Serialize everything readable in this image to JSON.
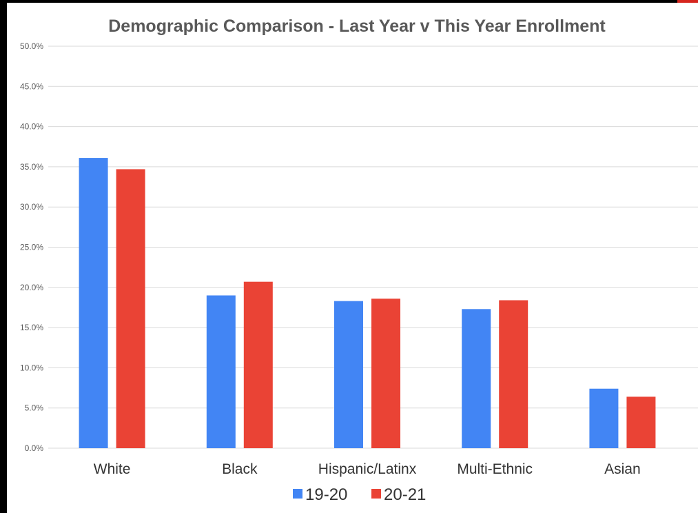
{
  "chart_data": {
    "type": "bar",
    "title": "Demographic Comparison - Last Year v This Year Enrollment",
    "categories": [
      "White",
      "Black",
      "Hispanic/Latinx",
      "Multi-Ethnic",
      "Asian"
    ],
    "series": [
      {
        "name": "19-20",
        "color": "#4285f4",
        "values": [
          36.1,
          19.0,
          18.3,
          17.3,
          7.4
        ]
      },
      {
        "name": "20-21",
        "color": "#ea4335",
        "values": [
          34.7,
          20.7,
          18.6,
          18.4,
          6.4
        ]
      }
    ],
    "yticks": [
      "0.0%",
      "5.0%",
      "10.0%",
      "15.0%",
      "20.0%",
      "25.0%",
      "30.0%",
      "35.0%",
      "40.0%",
      "45.0%",
      "50.0%"
    ],
    "ylim": [
      0,
      50
    ],
    "grid": true,
    "legend_position": "bottom",
    "xlabel": "",
    "ylabel": ""
  },
  "colors": {
    "background": "#ffffff",
    "frame": "#000000",
    "gridline": "#d9d9d9",
    "title": "#595959",
    "axis_text": "#595959"
  }
}
